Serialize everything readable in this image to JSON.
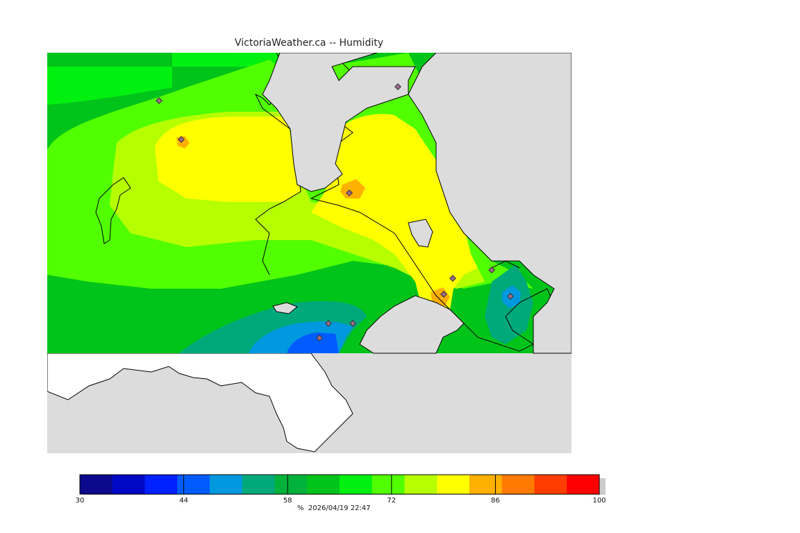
{
  "title": "VictoriaWeather.ca -- Humidity",
  "footer": {
    "unit": "%",
    "timestamp": "2026/04/19 22:47"
  },
  "colorbar": {
    "min": 30,
    "max": 100,
    "tick_labels": [
      "30",
      "44",
      "58",
      "72",
      "86",
      "100"
    ],
    "colors": [
      "#0b0a8c",
      "#0008c6",
      "#0021ff",
      "#005cff",
      "#0099e0",
      "#00a97a",
      "#00b23a",
      "#00c41a",
      "#00f00f",
      "#52ff00",
      "#b6ff00",
      "#ffff00",
      "#ffb000",
      "#ff7a00",
      "#ff3d00",
      "#ff0000"
    ]
  },
  "map_colors": {
    "land_nodata": "#ffffff",
    "water": "#dcdcdc",
    "h60": "#00c41a",
    "h64": "#00f00f",
    "h68": "#52ff00",
    "h72": "#b6ff00",
    "h76": "#ffff00",
    "h84": "#ffb000",
    "h52": "#00a97a",
    "h48": "#0099e0",
    "station": "#9a6a8a"
  }
}
